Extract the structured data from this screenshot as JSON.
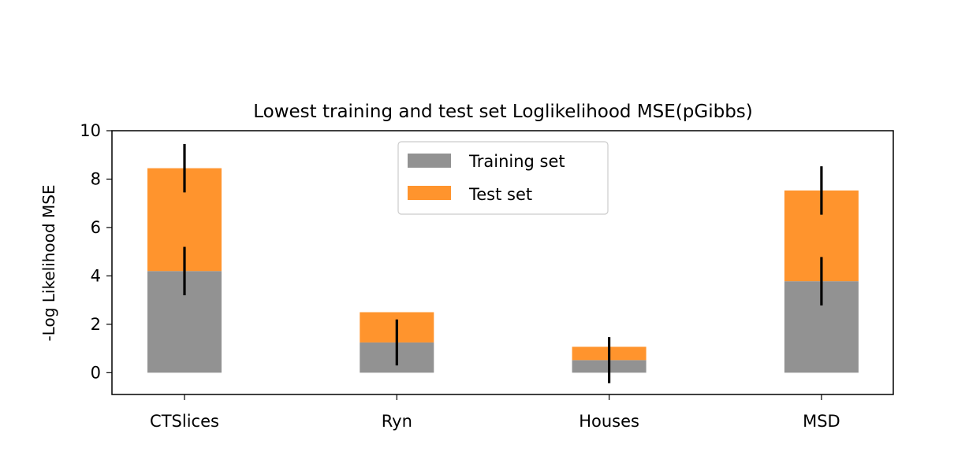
{
  "chart_data": {
    "type": "bar",
    "stacked": true,
    "title": "Lowest training and test set Loglikelihood MSE(pGibbs)",
    "xlabel": "",
    "ylabel": "-Log Likelihood MSE",
    "categories": [
      "CTSlices",
      "Ryn",
      "Houses",
      "MSD"
    ],
    "ylim": [
      -0.9,
      10
    ],
    "yticks": [
      0,
      2,
      4,
      6,
      8,
      10
    ],
    "grid": false,
    "legend_position": "top-center",
    "series": [
      {
        "name": "Training set",
        "color": "#929292",
        "values": [
          4.2,
          1.25,
          0.52,
          3.78
        ],
        "errors": [
          1.0,
          0.95,
          0.95,
          1.0
        ]
      },
      {
        "name": "Test set",
        "color": "#ff942d",
        "values": [
          4.25,
          1.25,
          0.55,
          3.75
        ],
        "errors": [
          1.0,
          0.0,
          0.0,
          1.0
        ]
      }
    ]
  }
}
